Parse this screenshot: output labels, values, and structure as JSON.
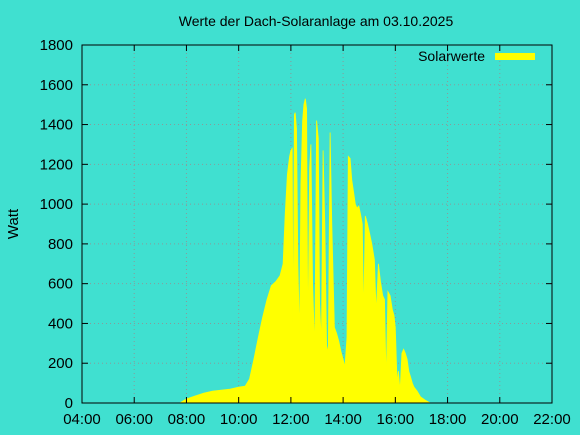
{
  "chart_data": {
    "type": "area",
    "title": "Werte der Dach-Solaranlage am 03.10.2025",
    "xlabel": "",
    "ylabel": "Watt",
    "xlim": [
      "04:00",
      "22:00"
    ],
    "ylim": [
      0,
      1800
    ],
    "x_ticks": [
      "04:00",
      "06:00",
      "08:00",
      "10:00",
      "12:00",
      "14:00",
      "16:00",
      "18:00",
      "20:00",
      "22:00"
    ],
    "y_ticks": [
      "0",
      "200",
      "400",
      "600",
      "800",
      "1000",
      "1200",
      "1400",
      "1600",
      "1800"
    ],
    "grid": true,
    "legend_position": "top-right",
    "series": [
      {
        "name": "Solarwerte",
        "color": "#ffff00",
        "points": [
          [
            "07:45",
            0
          ],
          [
            "08:00",
            20
          ],
          [
            "08:20",
            35
          ],
          [
            "08:40",
            50
          ],
          [
            "09:00",
            60
          ],
          [
            "09:20",
            65
          ],
          [
            "09:40",
            70
          ],
          [
            "10:00",
            80
          ],
          [
            "10:15",
            85
          ],
          [
            "10:25",
            120
          ],
          [
            "10:35",
            220
          ],
          [
            "10:45",
            330
          ],
          [
            "10:55",
            430
          ],
          [
            "11:05",
            520
          ],
          [
            "11:15",
            590
          ],
          [
            "11:25",
            610
          ],
          [
            "11:35",
            640
          ],
          [
            "11:42",
            700
          ],
          [
            "11:47",
            950
          ],
          [
            "11:52",
            1150
          ],
          [
            "11:57",
            1240
          ],
          [
            "12:00",
            1270
          ],
          [
            "12:03",
            1280
          ],
          [
            "12:05",
            280
          ],
          [
            "12:08",
            1450
          ],
          [
            "12:10",
            1460
          ],
          [
            "12:13",
            1380
          ],
          [
            "12:16",
            700
          ],
          [
            "12:20",
            320
          ],
          [
            "12:23",
            1100
          ],
          [
            "12:27",
            1420
          ],
          [
            "12:30",
            1500
          ],
          [
            "12:33",
            1530
          ],
          [
            "12:36",
            1480
          ],
          [
            "12:39",
            300
          ],
          [
            "12:43",
            1180
          ],
          [
            "12:46",
            1300
          ],
          [
            "12:50",
            600
          ],
          [
            "12:55",
            260
          ],
          [
            "12:59",
            1420
          ],
          [
            "13:03",
            1330
          ],
          [
            "13:06",
            500
          ],
          [
            "13:10",
            300
          ],
          [
            "13:14",
            1270
          ],
          [
            "13:18",
            900
          ],
          [
            "13:22",
            290
          ],
          [
            "13:26",
            250
          ],
          [
            "13:30",
            1360
          ],
          [
            "13:34",
            900
          ],
          [
            "13:40",
            380
          ],
          [
            "13:45",
            350
          ],
          [
            "13:50",
            310
          ],
          [
            "13:55",
            260
          ],
          [
            "14:00",
            220
          ],
          [
            "14:04",
            180
          ],
          [
            "14:09",
            330
          ],
          [
            "14:12",
            1240
          ],
          [
            "14:16",
            1230
          ],
          [
            "14:20",
            1120
          ],
          [
            "14:24",
            1060
          ],
          [
            "14:28",
            1000
          ],
          [
            "14:32",
            980
          ],
          [
            "14:36",
            990
          ],
          [
            "14:40",
            950
          ],
          [
            "14:44",
            900
          ],
          [
            "14:47",
            420
          ],
          [
            "14:51",
            940
          ],
          [
            "14:56",
            900
          ],
          [
            "15:01",
            850
          ],
          [
            "15:06",
            800
          ],
          [
            "15:12",
            720
          ],
          [
            "15:16",
            450
          ],
          [
            "15:21",
            700
          ],
          [
            "15:26",
            610
          ],
          [
            "15:31",
            540
          ],
          [
            "15:35",
            520
          ],
          [
            "15:39",
            100
          ],
          [
            "15:43",
            560
          ],
          [
            "15:48",
            540
          ],
          [
            "15:53",
            470
          ],
          [
            "15:57",
            440
          ],
          [
            "16:00",
            380
          ],
          [
            "16:04",
            100
          ],
          [
            "16:07",
            160
          ],
          [
            "16:11",
            60
          ],
          [
            "16:15",
            250
          ],
          [
            "16:19",
            270
          ],
          [
            "16:23",
            250
          ],
          [
            "16:27",
            220
          ],
          [
            "16:31",
            160
          ],
          [
            "16:35",
            130
          ],
          [
            "16:39",
            100
          ],
          [
            "16:43",
            80
          ],
          [
            "16:50",
            60
          ],
          [
            "16:58",
            30
          ],
          [
            "17:08",
            15
          ],
          [
            "17:20",
            0
          ]
        ]
      }
    ]
  }
}
